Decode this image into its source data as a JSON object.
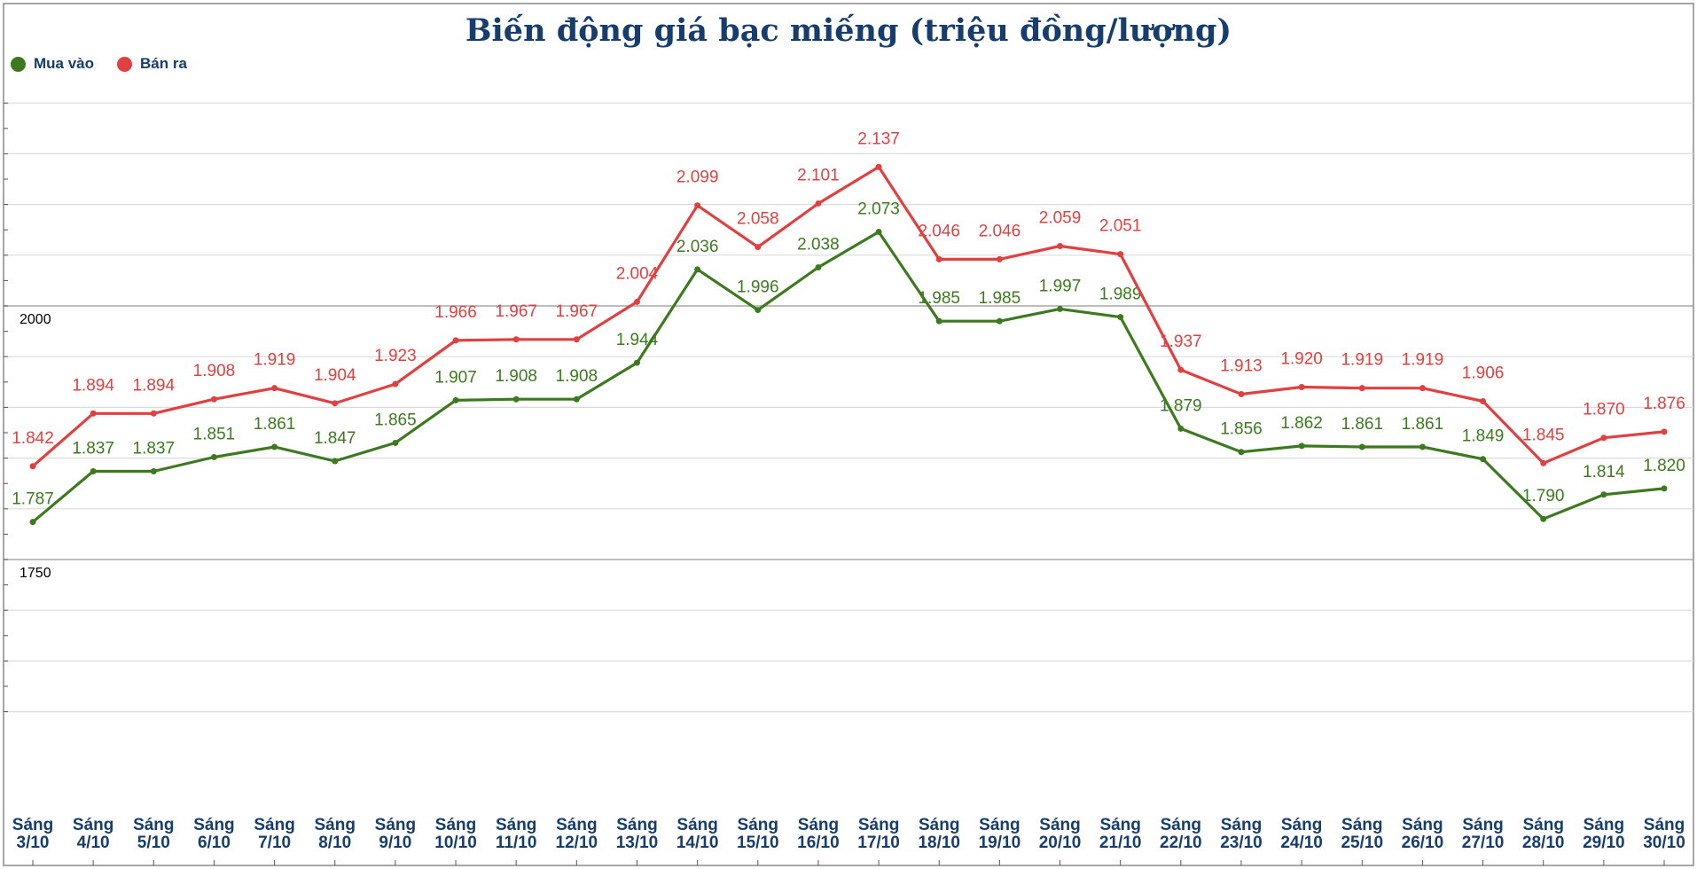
{
  "chart_data": {
    "type": "line",
    "title": "Biến động giá bạc miếng (triệu đồng/lượng)",
    "xlabel": "",
    "ylabel": "",
    "ylim": [
      1600,
      2200
    ],
    "y_ticks": [
      {
        "value": 2000,
        "label": "2000"
      },
      {
        "value": 1750,
        "label": "1750"
      }
    ],
    "categories": [
      [
        "Sáng",
        "3/10"
      ],
      [
        "Sáng",
        "4/10"
      ],
      [
        "Sáng",
        "5/10"
      ],
      [
        "Sáng",
        "6/10"
      ],
      [
        "Sáng",
        "7/10"
      ],
      [
        "Sáng",
        "8/10"
      ],
      [
        "Sáng",
        "9/10"
      ],
      [
        "Sáng",
        "10/10"
      ],
      [
        "Sáng",
        "11/10"
      ],
      [
        "Sáng",
        "12/10"
      ],
      [
        "Sáng",
        "13/10"
      ],
      [
        "Sáng",
        "14/10"
      ],
      [
        "Sáng",
        "15/10"
      ],
      [
        "Sáng",
        "16/10"
      ],
      [
        "Sáng",
        "17/10"
      ],
      [
        "Sáng",
        "18/10"
      ],
      [
        "Sáng",
        "19/10"
      ],
      [
        "Sáng",
        "20/10"
      ],
      [
        "Sáng",
        "21/10"
      ],
      [
        "Sáng",
        "22/10"
      ],
      [
        "Sáng",
        "23/10"
      ],
      [
        "Sáng",
        "24/10"
      ],
      [
        "Sáng",
        "25/10"
      ],
      [
        "Sáng",
        "26/10"
      ],
      [
        "Sáng",
        "27/10"
      ],
      [
        "Sáng",
        "28/10"
      ],
      [
        "Sáng",
        "29/10"
      ],
      [
        "Sáng",
        "30/10"
      ]
    ],
    "series": [
      {
        "name": "Mua vào",
        "color": "#3d7a1f",
        "values": [
          1787,
          1837,
          1837,
          1851,
          1861,
          1847,
          1865,
          1907,
          1908,
          1908,
          1944,
          2036,
          1996,
          2038,
          2073,
          1985,
          1985,
          1997,
          1989,
          1879,
          1856,
          1862,
          1861,
          1861,
          1849,
          1790,
          1814,
          1820
        ],
        "labels": [
          "1.787",
          "1.837",
          "1.837",
          "1.851",
          "1.861",
          "1.847",
          "1.865",
          "1.907",
          "1.908",
          "1.908",
          "1.944",
          "2.036",
          "1.996",
          "2.038",
          "2.073",
          "1.985",
          "1.985",
          "1.997",
          "1.989",
          "1.879",
          "1.856",
          "1.862",
          "1.861",
          "1.861",
          "1.849",
          "1.790",
          "1.814",
          "1.820"
        ]
      },
      {
        "name": "Bán ra",
        "color": "#e04040",
        "values": [
          1842,
          1894,
          1894,
          1908,
          1919,
          1904,
          1923,
          1966,
          1967,
          1967,
          2004,
          2099,
          2058,
          2101,
          2137,
          2046,
          2046,
          2059,
          2051,
          1937,
          1913,
          1920,
          1919,
          1919,
          1906,
          1845,
          1870,
          1876
        ],
        "labels": [
          "1.842",
          "1.894",
          "1.894",
          "1.908",
          "1.919",
          "1.904",
          "1.923",
          "1.966",
          "1.967",
          "1.967",
          "2.004",
          "2.099",
          "2.058",
          "2.101",
          "2.137",
          "2.046",
          "2.046",
          "2.059",
          "2.051",
          "1.937",
          "1.913",
          "1.920",
          "1.919",
          "1.919",
          "1.906",
          "1.845",
          "1.870",
          "1.876"
        ]
      }
    ],
    "legend": "top-left",
    "grid": true
  }
}
